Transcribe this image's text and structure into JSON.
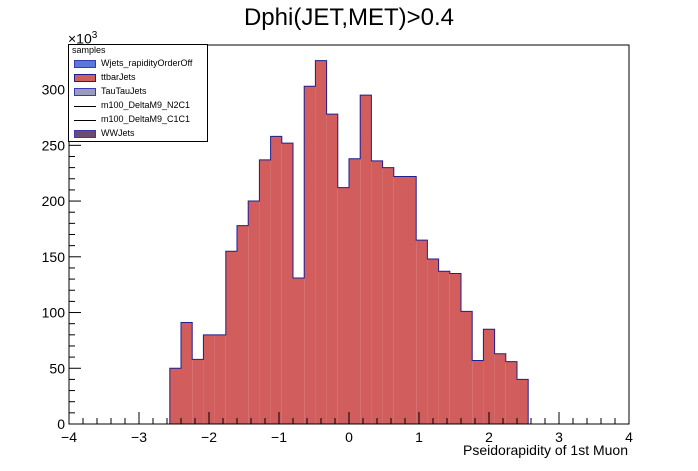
{
  "chart_data": {
    "type": "bar",
    "title": "Dphi(JET,MET)>0.4",
    "xlabel": "Pseidorapidity of 1st Muon",
    "ylabel": "",
    "y_multiplier": "×10",
    "y_multiplier_exp": "3",
    "xlim": [
      -4,
      4
    ],
    "ylim": [
      0,
      340
    ],
    "bin_width": 0.16,
    "bin_start": -2.56,
    "x_ticks": [
      -4,
      -3,
      -2,
      -1,
      0,
      1,
      2,
      3,
      4
    ],
    "x_tick_labels": [
      "−4",
      "−3",
      "−2",
      "−1",
      "0",
      "1",
      "2",
      "3",
      "4"
    ],
    "y_ticks": [
      0,
      50,
      100,
      150,
      200,
      250,
      300
    ],
    "y_tick_labels": [
      "0",
      "50",
      "100",
      "150",
      "200",
      "250",
      "300"
    ],
    "series": [
      {
        "name": "ttbarJets",
        "color": "#d15d5d",
        "edge_color": "#1f1f8f",
        "values": [
          50,
          91,
          58,
          80,
          80,
          155,
          178,
          200,
          237,
          258,
          252,
          131,
          303,
          326,
          278,
          212,
          238,
          295,
          236,
          230,
          222,
          222,
          165,
          148,
          137,
          135,
          101,
          57,
          85,
          63,
          56,
          40
        ]
      }
    ],
    "legend": {
      "title": "samples",
      "position": "top-left",
      "entries": [
        {
          "label": "Wjets_rapidityOrderOff",
          "color": "#5a78d8",
          "kind": "fill"
        },
        {
          "label": "ttbarJets",
          "color": "#d15d5d",
          "kind": "fill"
        },
        {
          "label": "TauTauJets",
          "color": "#9b9bc0",
          "kind": "fill"
        },
        {
          "label": "m100_DeltaM9_N2C1",
          "color": "#000000",
          "kind": "line"
        },
        {
          "label": "m100_DeltaM9_C1C1",
          "color": "#000000",
          "kind": "line"
        },
        {
          "label": "WWJets",
          "color": "#6e4a6e",
          "kind": "fill"
        }
      ]
    }
  }
}
